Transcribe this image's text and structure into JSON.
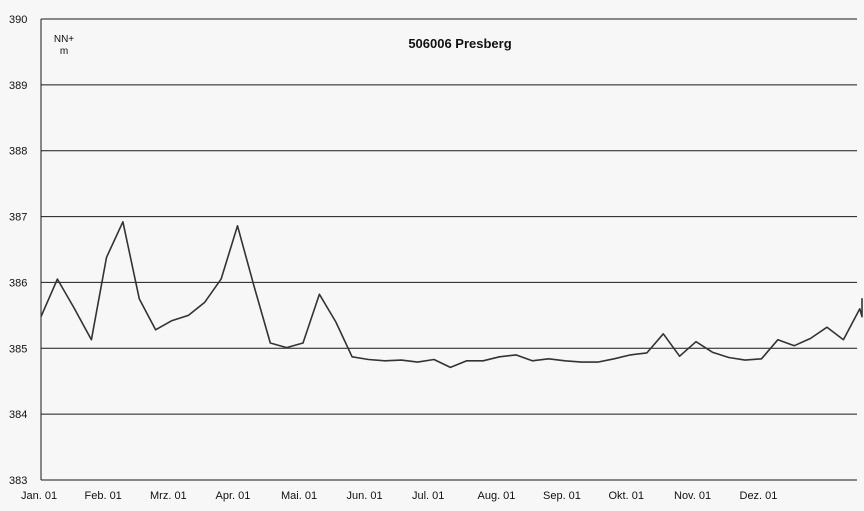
{
  "chart_data": {
    "type": "line",
    "title": "506006 Presberg",
    "ylabel_lines": [
      "NN+",
      "m"
    ],
    "xlabel": "",
    "ylim": [
      383,
      390
    ],
    "yticks": [
      "383",
      "384",
      "385",
      "386",
      "387",
      "388",
      "389",
      "390"
    ],
    "categories": [
      "Jan. 01",
      "Feb. 01",
      "Mrz. 01",
      "Apr. 01",
      "Mai. 01",
      "Jun. 01",
      "Jul. 01",
      "Aug. 01",
      "Sep. 01",
      "Okt. 01",
      "Nov. 01",
      "Dez. 01"
    ],
    "xlim_months": [
      0,
      12.25
    ],
    "grid": true,
    "legend": "none",
    "colors": {
      "line": "#333333",
      "grid": "#1a1a1a",
      "background": "#f7f7f7"
    },
    "series": [
      {
        "x": [
          0.0,
          0.25,
          0.5,
          0.77,
          1.0,
          1.25,
          1.5,
          1.75,
          2.0,
          2.25,
          2.5,
          2.75,
          3.0,
          3.25,
          3.5,
          3.75,
          4.0,
          4.25,
          4.5,
          4.75,
          5.0,
          5.25,
          5.5,
          5.75,
          6.0,
          6.25,
          6.5,
          6.75,
          7.0,
          7.25,
          7.5,
          7.75,
          8.0,
          8.25,
          8.5,
          8.75,
          9.0,
          9.25,
          9.5,
          9.75,
          10.0,
          10.25,
          10.5,
          10.75,
          11.0,
          11.25,
          11.5,
          11.75,
          12.0,
          12.25
        ],
        "values": [
          385.48,
          386.05,
          385.62,
          385.13,
          386.38,
          386.92,
          385.75,
          385.28,
          385.42,
          385.5,
          385.7,
          386.05,
          386.86,
          385.95,
          385.08,
          385.01,
          385.08,
          385.82,
          385.4,
          384.87,
          384.83,
          384.81,
          384.82,
          384.79,
          384.83,
          384.71,
          384.81,
          384.81,
          384.87,
          384.9,
          384.81,
          384.84,
          384.81,
          384.79,
          384.79,
          384.84,
          384.9,
          384.93,
          385.22,
          384.88,
          385.1,
          384.94,
          384.86,
          384.82,
          384.84,
          385.13,
          385.04,
          385.15,
          385.32,
          385.13
        ]
      }
    ],
    "series_tail": {
      "x": [
        12.5,
        12.75,
        13.0
      ],
      "values": [
        385.6,
        385.48,
        385.76
      ]
    }
  }
}
